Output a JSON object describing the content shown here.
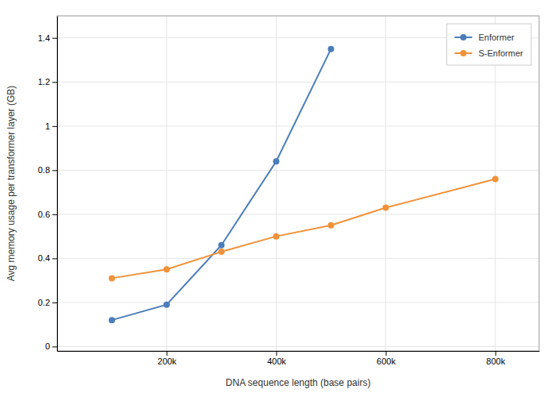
{
  "chart_data": {
    "type": "line",
    "xlabel": "DNA sequence length (base pairs)",
    "ylabel": "Avg memory usage per transformer layer (GB)",
    "x": [
      100000,
      200000,
      300000,
      400000,
      500000,
      600000,
      800000
    ],
    "series": [
      {
        "name": "Enformer",
        "color": "#4b7db9",
        "values": [
          0.12,
          0.19,
          0.46,
          0.84,
          1.35,
          null,
          null
        ]
      },
      {
        "name": "S-Enformer",
        "color": "#f0923a",
        "values": [
          0.31,
          0.35,
          0.43,
          0.5,
          0.55,
          0.63,
          0.76
        ]
      }
    ],
    "xlim": [
      0,
      880000
    ],
    "xticks": [
      {
        "value": 200000,
        "label": "200k"
      },
      {
        "value": 400000,
        "label": "400k"
      },
      {
        "value": 600000,
        "label": "600k"
      },
      {
        "value": 800000,
        "label": "800k"
      }
    ],
    "ylim": [
      -0.02,
      1.5
    ],
    "yticks": [
      0,
      0.2,
      0.4,
      0.6,
      0.8,
      1,
      1.2,
      1.4
    ],
    "grid": true,
    "legend": "upper right",
    "marker": "circle",
    "line_style": "solid"
  }
}
